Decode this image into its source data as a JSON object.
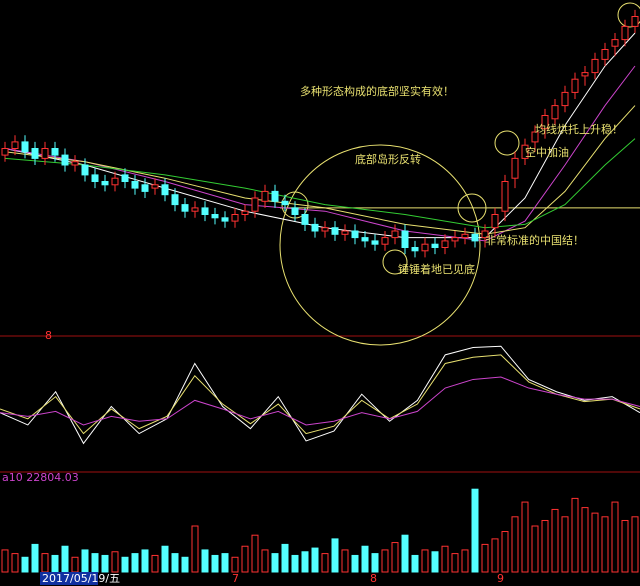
{
  "chart_data": [
    {
      "type": "candlestick",
      "open": [
        53,
        55,
        57,
        55,
        52,
        55,
        53,
        50,
        50,
        47,
        45,
        44,
        47,
        45,
        44,
        43,
        44,
        41,
        38,
        36,
        37,
        35,
        34,
        33,
        35,
        36,
        39,
        42,
        39,
        37,
        35,
        32,
        30,
        31,
        29,
        30,
        28,
        27,
        26,
        28,
        30,
        25,
        24,
        26,
        25,
        27,
        28,
        29,
        28,
        31,
        36,
        46,
        52,
        57,
        61,
        64,
        68,
        72,
        77,
        78,
        82,
        86,
        88,
        92
      ],
      "close": [
        55,
        57,
        54,
        52,
        55,
        53,
        50,
        51,
        47,
        45,
        44,
        46,
        45,
        43,
        42,
        44,
        41,
        38,
        36,
        37,
        35,
        34,
        33,
        35,
        36,
        40,
        42,
        39,
        38,
        35,
        32,
        30,
        31,
        29,
        30,
        28,
        27,
        26,
        28,
        30,
        25,
        24,
        26,
        25,
        27,
        28,
        29,
        27,
        30,
        35,
        45,
        52,
        56,
        60,
        65,
        68,
        72,
        76,
        78,
        82,
        85,
        88,
        92,
        95
      ],
      "high": [
        57,
        59,
        59,
        57,
        57,
        57,
        55,
        53,
        52,
        49,
        47,
        48,
        49,
        47,
        46,
        46,
        46,
        43,
        40,
        39,
        39,
        37,
        36,
        37,
        38,
        42,
        44,
        44,
        41,
        39,
        37,
        34,
        33,
        33,
        32,
        32,
        30,
        29,
        30,
        32,
        32,
        27,
        28,
        28,
        29,
        30,
        31,
        31,
        32,
        37,
        47,
        54,
        58,
        62,
        67,
        70,
        74,
        78,
        80,
        84,
        87,
        90,
        94,
        97
      ],
      "low": [
        51,
        53,
        52,
        50,
        50,
        51,
        48,
        48,
        45,
        43,
        42,
        42,
        43,
        41,
        40,
        41,
        39,
        36,
        34,
        34,
        33,
        32,
        31,
        31,
        33,
        34,
        37,
        37,
        36,
        33,
        30,
        28,
        28,
        27,
        27,
        26,
        25,
        24,
        24,
        26,
        23,
        22,
        22,
        23,
        23,
        25,
        26,
        25,
        25,
        28,
        33,
        43,
        50,
        54,
        58,
        62,
        66,
        70,
        74,
        76,
        80,
        83,
        86,
        90
      ],
      "up_color": "#ff3232",
      "down_color": "#54ffff",
      "ylim": [
        0,
        100
      ],
      "lines": [
        {
          "color": "#ffffff",
          "x": [
            0,
            8,
            16,
            24,
            32,
            40,
            48,
            52,
            56,
            60,
            63
          ],
          "values": [
            55,
            50,
            43,
            36,
            31,
            28,
            28,
            40,
            62,
            80,
            90
          ]
        },
        {
          "color": "#cc44cc",
          "x": [
            0,
            8,
            16,
            24,
            32,
            40,
            48,
            52,
            56,
            60,
            63
          ],
          "values": [
            55,
            51,
            45,
            38,
            36,
            30,
            27,
            33,
            50,
            68,
            80
          ]
        },
        {
          "color": "#e8e070",
          "x": [
            0,
            8,
            16,
            24,
            32,
            40,
            48,
            52,
            56,
            60,
            63
          ],
          "values": [
            54,
            51,
            46,
            40,
            37,
            32,
            29,
            31,
            42,
            58,
            68
          ]
        },
        {
          "color": "#33cc33",
          "x": [
            0,
            8,
            16,
            24,
            32,
            40,
            48,
            52,
            56,
            60,
            63
          ],
          "values": [
            52,
            50,
            47,
            43,
            38,
            35,
            31,
            32,
            38,
            50,
            58
          ]
        }
      ],
      "level": 37,
      "level_color": "#e8e070",
      "annotations": [
        "多种形态构成的底部坚实有效！",
        "底部岛形反转",
        "均线烘托上升稳！",
        "空中加油",
        "非常标准的中国结！",
        "锤锤着地已见底"
      ],
      "marker": "8"
    },
    {
      "type": "line",
      "ylim": [
        0,
        100
      ],
      "series": [
        {
          "color": "#ffffff",
          "values": [
            45,
            35,
            62,
            20,
            50,
            28,
            40,
            85,
            50,
            32,
            58,
            22,
            30,
            60,
            38,
            55,
            92,
            98,
            99,
            72,
            62,
            55,
            58,
            45
          ]
        },
        {
          "color": "#e8e070",
          "values": [
            48,
            40,
            58,
            28,
            48,
            32,
            42,
            75,
            52,
            36,
            52,
            28,
            34,
            55,
            40,
            52,
            85,
            90,
            92,
            70,
            60,
            54,
            56,
            48
          ]
        },
        {
          "color": "#cc44cc",
          "values": [
            45,
            42,
            46,
            35,
            42,
            38,
            40,
            55,
            48,
            40,
            46,
            35,
            38,
            45,
            40,
            46,
            65,
            72,
            74,
            65,
            60,
            56,
            56,
            50
          ]
        }
      ]
    },
    {
      "type": "bar",
      "ylim": [
        0,
        50
      ],
      "label": "a10 22804.03",
      "date_label": "2017/05/19/五",
      "x_labels": [
        "7",
        "8",
        "9"
      ],
      "values": [
        12,
        10,
        8,
        15,
        10,
        9,
        14,
        8,
        12,
        10,
        9,
        11,
        8,
        10,
        12,
        9,
        14,
        10,
        8,
        25,
        12,
        9,
        10,
        8,
        14,
        20,
        12,
        10,
        15,
        9,
        11,
        13,
        10,
        18,
        12,
        9,
        14,
        10,
        12,
        16,
        20,
        9,
        12,
        11,
        14,
        10,
        12,
        45,
        15,
        18,
        22,
        30,
        38,
        25,
        28,
        34,
        30,
        40,
        35,
        32,
        30,
        38,
        28,
        30
      ]
    }
  ]
}
